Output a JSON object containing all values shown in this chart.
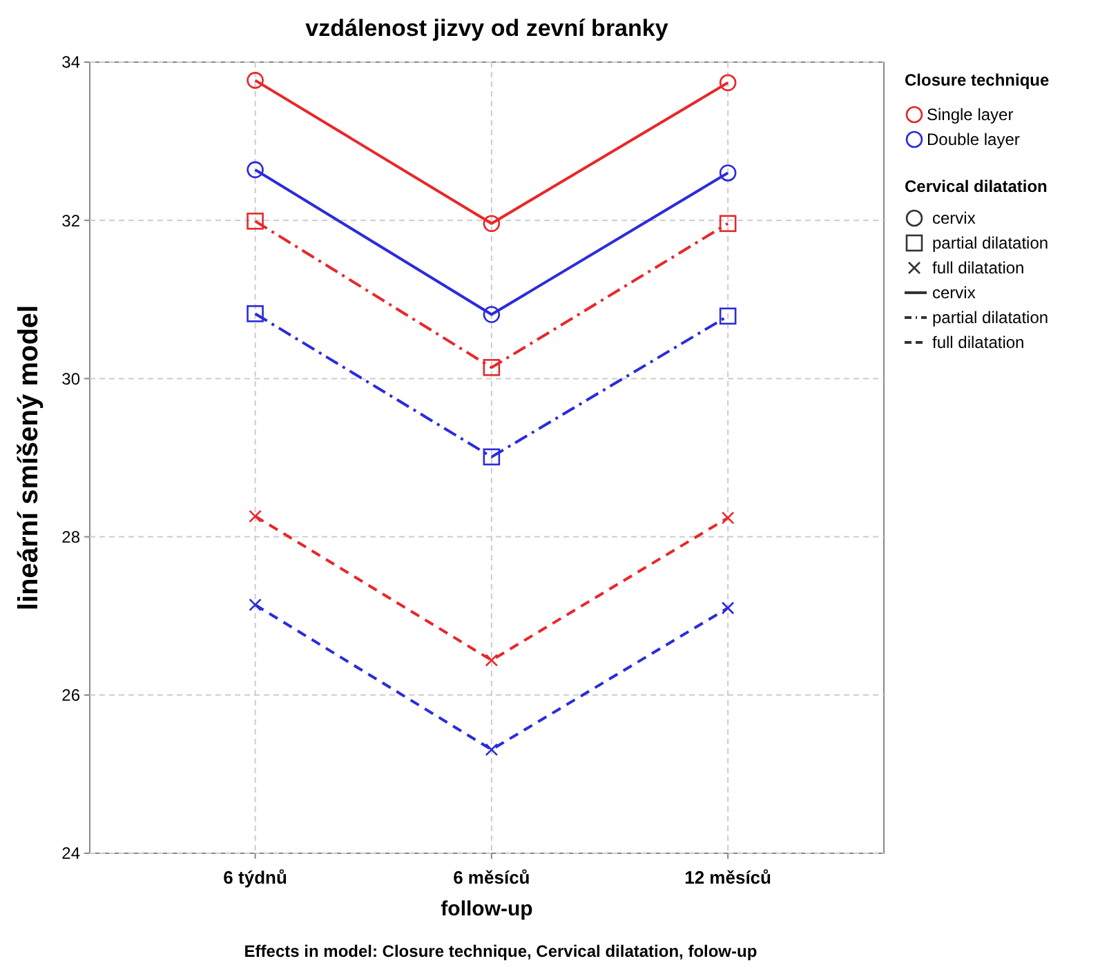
{
  "chart_data": {
    "type": "line",
    "title": "vzdálenost jizvy od zevní branky",
    "xlabel": "follow-up",
    "ylabel": "lineární smíšený model",
    "legend_title": "Closure technique",
    "categories": [
      "6 týdnů",
      "6 měsíců",
      "12 měsíců"
    ],
    "series": [
      {
        "name": "Single layer",
        "color": "#e8272a",
        "marker": "circle",
        "line_style": "solid",
        "values": [
          33.77,
          31.96,
          33.74
        ]
      },
      {
        "name": "Double layer",
        "color": "#2b2bdc",
        "marker": "circle",
        "line_style": "solid",
        "values": [
          32.64,
          30.81,
          32.6
        ]
      },
      {
        "color": "#e8272a",
        "marker": "square",
        "line_style": "dashdot",
        "values": [
          31.99,
          30.14,
          31.96
        ]
      },
      {
        "color": "#2b2bdc",
        "marker": "square",
        "line_style": "dashdot",
        "values": [
          30.82,
          29.01,
          30.79
        ]
      },
      {
        "color": "#e8272a",
        "marker": "cross",
        "line_style": "dashed",
        "values": [
          28.26,
          26.44,
          28.24
        ]
      },
      {
        "color": "#2b2bdc",
        "marker": "cross",
        "line_style": "dashed",
        "values": [
          27.14,
          25.31,
          27.1
        ]
      }
    ],
    "ylim": [
      24,
      34
    ],
    "yticks": [
      24,
      26,
      28,
      30,
      32,
      34
    ],
    "grid": true,
    "legend": "right",
    "annotations": [
      "Cervical dilatation",
      "cervix",
      "partial dilatation",
      "full dilatation",
      "cervix",
      "partial dilatation",
      "full dilatation",
      "Effects in model: Closure technique, Cervical dilatation, folow-up"
    ]
  }
}
